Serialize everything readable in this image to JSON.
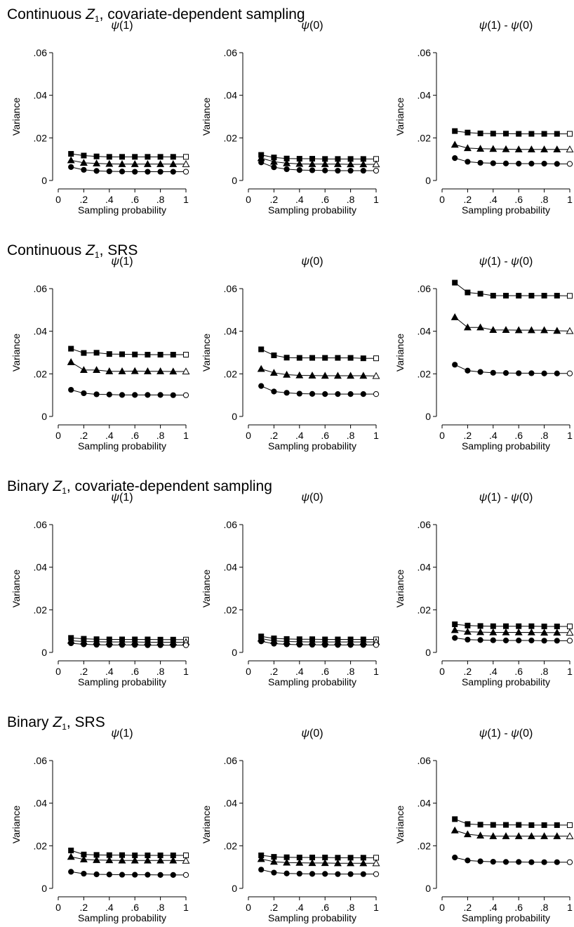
{
  "chart_data": [
    {
      "type": "line",
      "row_title": {
        "pre": "Continuous ",
        "var": "Z",
        "sub": "1",
        "post": ", covariate-dependent sampling"
      },
      "title": "ψ(1)",
      "xlabel": "Sampling probability",
      "ylabel": "Variance",
      "xlim": [
        0,
        1
      ],
      "ylim": [
        0,
        0.06
      ],
      "xticks": [
        "0",
        ".2",
        ".4",
        ".6",
        ".8",
        "1"
      ],
      "yticks": [
        "0",
        ".02",
        ".04",
        ".06"
      ],
      "x": [
        0.1,
        0.2,
        0.3,
        0.4,
        0.5,
        0.6,
        0.7,
        0.8,
        0.9,
        1.0
      ],
      "series": [
        {
          "marker": "square",
          "values": [
            0.0125,
            0.0117,
            0.0113,
            0.0111,
            0.0111,
            0.0111,
            0.0111,
            0.0111,
            0.0111,
            0.0111
          ]
        },
        {
          "marker": "triangle",
          "values": [
            0.0095,
            0.0083,
            0.008,
            0.0078,
            0.0077,
            0.0077,
            0.0077,
            0.0077,
            0.0077,
            0.0077
          ]
        },
        {
          "marker": "circle",
          "values": [
            0.0063,
            0.005,
            0.0045,
            0.0043,
            0.0042,
            0.0041,
            0.0041,
            0.0041,
            0.0041,
            0.0041
          ]
        }
      ]
    },
    {
      "type": "line",
      "title": "ψ(0)",
      "xlabel": "Sampling probability",
      "ylabel": "Variance",
      "xlim": [
        0,
        1
      ],
      "ylim": [
        0,
        0.06
      ],
      "xticks": [
        "0",
        ".2",
        ".4",
        ".6",
        ".8",
        "1"
      ],
      "yticks": [
        "0",
        ".02",
        ".04",
        ".06"
      ],
      "x": [
        0.1,
        0.2,
        0.3,
        0.4,
        0.5,
        0.6,
        0.7,
        0.8,
        0.9,
        1.0
      ],
      "series": [
        {
          "marker": "square",
          "values": [
            0.012,
            0.0108,
            0.0103,
            0.0102,
            0.0102,
            0.0101,
            0.0101,
            0.0101,
            0.0101,
            0.0101
          ]
        },
        {
          "marker": "triangle",
          "values": [
            0.0105,
            0.0088,
            0.0081,
            0.0078,
            0.0077,
            0.0077,
            0.0077,
            0.0076,
            0.0076,
            0.0076
          ]
        },
        {
          "marker": "circle",
          "values": [
            0.0085,
            0.0062,
            0.0053,
            0.0049,
            0.0048,
            0.0047,
            0.0046,
            0.0046,
            0.0046,
            0.0046
          ]
        }
      ]
    },
    {
      "type": "line",
      "title": "ψ(1) - ψ(0)",
      "xlabel": "Sampling probability",
      "ylabel": "Variance",
      "xlim": [
        0,
        1
      ],
      "ylim": [
        0,
        0.06
      ],
      "xticks": [
        "0",
        ".2",
        ".4",
        ".6",
        ".8",
        "1"
      ],
      "yticks": [
        "0",
        ".02",
        ".04",
        ".06"
      ],
      "x": [
        0.1,
        0.2,
        0.3,
        0.4,
        0.5,
        0.6,
        0.7,
        0.8,
        0.9,
        1.0
      ],
      "series": [
        {
          "marker": "square",
          "values": [
            0.0232,
            0.0225,
            0.0221,
            0.022,
            0.022,
            0.0219,
            0.0219,
            0.0219,
            0.0219,
            0.0219
          ]
        },
        {
          "marker": "triangle",
          "values": [
            0.0168,
            0.0152,
            0.0149,
            0.0148,
            0.0147,
            0.0146,
            0.0146,
            0.0146,
            0.0146,
            0.0146
          ]
        },
        {
          "marker": "circle",
          "values": [
            0.0105,
            0.0088,
            0.0083,
            0.0081,
            0.008,
            0.0079,
            0.0079,
            0.0079,
            0.0078,
            0.0078
          ]
        }
      ]
    },
    {
      "type": "line",
      "row_title": {
        "pre": "Continuous ",
        "var": "Z",
        "sub": "1",
        "post": ", SRS"
      },
      "title": "ψ(1)",
      "xlabel": "Sampling probability",
      "ylabel": "Variance",
      "xlim": [
        0,
        1
      ],
      "ylim": [
        0,
        0.06
      ],
      "xticks": [
        "0",
        ".2",
        ".4",
        ".6",
        ".8",
        "1"
      ],
      "yticks": [
        "0",
        ".02",
        ".04",
        ".06"
      ],
      "x": [
        0.1,
        0.2,
        0.3,
        0.4,
        0.5,
        0.6,
        0.7,
        0.8,
        0.9,
        1.0
      ],
      "series": [
        {
          "marker": "square",
          "values": [
            0.0318,
            0.0298,
            0.0299,
            0.0293,
            0.0292,
            0.0291,
            0.029,
            0.029,
            0.029,
            0.029
          ]
        },
        {
          "marker": "triangle",
          "values": [
            0.0255,
            0.0218,
            0.0218,
            0.0212,
            0.0212,
            0.0213,
            0.0212,
            0.0212,
            0.0211,
            0.0211
          ]
        },
        {
          "marker": "circle",
          "values": [
            0.0125,
            0.0109,
            0.0104,
            0.0103,
            0.0101,
            0.0101,
            0.0101,
            0.0101,
            0.01,
            0.01
          ]
        }
      ]
    },
    {
      "type": "line",
      "title": "ψ(0)",
      "xlabel": "Sampling probability",
      "ylabel": "Variance",
      "xlim": [
        0,
        1
      ],
      "ylim": [
        0,
        0.06
      ],
      "xticks": [
        "0",
        ".2",
        ".4",
        ".6",
        ".8",
        "1"
      ],
      "yticks": [
        "0",
        ".02",
        ".04",
        ".06"
      ],
      "x": [
        0.1,
        0.2,
        0.3,
        0.4,
        0.5,
        0.6,
        0.7,
        0.8,
        0.9,
        1.0
      ],
      "series": [
        {
          "marker": "square",
          "values": [
            0.0315,
            0.0287,
            0.0276,
            0.0275,
            0.0275,
            0.0275,
            0.0275,
            0.0275,
            0.0273,
            0.0273
          ]
        },
        {
          "marker": "triangle",
          "values": [
            0.0223,
            0.0205,
            0.0196,
            0.0193,
            0.0192,
            0.0191,
            0.0191,
            0.0191,
            0.0191,
            0.019
          ]
        },
        {
          "marker": "circle",
          "values": [
            0.0143,
            0.0117,
            0.0111,
            0.0107,
            0.0106,
            0.0105,
            0.0105,
            0.0105,
            0.0105,
            0.0105
          ]
        }
      ]
    },
    {
      "type": "line",
      "title": "ψ(1) - ψ(0)",
      "xlabel": "Sampling probability",
      "ylabel": "Variance",
      "xlim": [
        0,
        1
      ],
      "ylim": [
        0,
        0.06
      ],
      "xticks": [
        "0",
        ".2",
        ".4",
        ".6",
        ".8",
        "1"
      ],
      "yticks": [
        "0",
        ".02",
        ".04",
        ".06"
      ],
      "x": [
        0.1,
        0.2,
        0.3,
        0.4,
        0.5,
        0.6,
        0.7,
        0.8,
        0.9,
        1.0
      ],
      "series": [
        {
          "marker": "square",
          "values": [
            0.0628,
            0.0582,
            0.0576,
            0.0567,
            0.0567,
            0.0567,
            0.0567,
            0.0567,
            0.0567,
            0.0566
          ]
        },
        {
          "marker": "triangle",
          "values": [
            0.0466,
            0.0418,
            0.0418,
            0.0406,
            0.0406,
            0.0405,
            0.0405,
            0.0405,
            0.0402,
            0.0401
          ]
        },
        {
          "marker": "circle",
          "values": [
            0.0243,
            0.0215,
            0.0209,
            0.0205,
            0.0204,
            0.0203,
            0.0203,
            0.0202,
            0.0202,
            0.0202
          ]
        }
      ]
    },
    {
      "type": "line",
      "row_title": {
        "pre": "Binary ",
        "var": "Z",
        "sub": "1",
        "post": ", covariate-dependent sampling"
      },
      "title": "ψ(1)",
      "xlabel": "Sampling probability",
      "ylabel": "Variance",
      "xlim": [
        0,
        1
      ],
      "ylim": [
        0,
        0.06
      ],
      "xticks": [
        "0",
        ".2",
        ".4",
        ".6",
        ".8",
        "1"
      ],
      "yticks": [
        "0",
        ".02",
        ".04",
        ".06"
      ],
      "x": [
        0.1,
        0.2,
        0.3,
        0.4,
        0.5,
        0.6,
        0.7,
        0.8,
        0.9,
        1.0
      ],
      "series": [
        {
          "marker": "square",
          "values": [
            0.0068,
            0.0064,
            0.0062,
            0.0061,
            0.0061,
            0.0061,
            0.0061,
            0.006,
            0.006,
            0.006
          ]
        },
        {
          "marker": "triangle",
          "values": [
            0.0055,
            0.0051,
            0.005,
            0.0049,
            0.0049,
            0.0049,
            0.0048,
            0.0048,
            0.0048,
            0.0048
          ]
        },
        {
          "marker": "circle",
          "values": [
            0.0043,
            0.0038,
            0.0036,
            0.0035,
            0.0035,
            0.0035,
            0.0034,
            0.0034,
            0.0034,
            0.0034
          ]
        }
      ]
    },
    {
      "type": "line",
      "title": "ψ(0)",
      "xlabel": "Sampling probability",
      "ylabel": "Variance",
      "xlim": [
        0,
        1
      ],
      "ylim": [
        0,
        0.06
      ],
      "xticks": [
        "0",
        ".2",
        ".4",
        ".6",
        ".8",
        "1"
      ],
      "yticks": [
        "0",
        ".02",
        ".04",
        ".06"
      ],
      "x": [
        0.1,
        0.2,
        0.3,
        0.4,
        0.5,
        0.6,
        0.7,
        0.8,
        0.9,
        1.0
      ],
      "series": [
        {
          "marker": "square",
          "values": [
            0.0075,
            0.0066,
            0.0063,
            0.0062,
            0.0062,
            0.0061,
            0.0061,
            0.0061,
            0.0061,
            0.0061
          ]
        },
        {
          "marker": "triangle",
          "values": [
            0.0065,
            0.0054,
            0.0051,
            0.005,
            0.0049,
            0.0049,
            0.0049,
            0.0049,
            0.0049,
            0.0049
          ]
        },
        {
          "marker": "circle",
          "values": [
            0.0052,
            0.0041,
            0.0038,
            0.0036,
            0.0036,
            0.0035,
            0.0035,
            0.0035,
            0.0035,
            0.0035
          ]
        }
      ]
    },
    {
      "type": "line",
      "title": "ψ(1) - ψ(0)",
      "xlabel": "Sampling probability",
      "ylabel": "Variance",
      "xlim": [
        0,
        1
      ],
      "ylim": [
        0,
        0.06
      ],
      "xticks": [
        "0",
        ".2",
        ".4",
        ".6",
        ".8",
        "1"
      ],
      "yticks": [
        "0",
        ".02",
        ".04",
        ".06"
      ],
      "x": [
        0.1,
        0.2,
        0.3,
        0.4,
        0.5,
        0.6,
        0.7,
        0.8,
        0.9,
        1.0
      ],
      "series": [
        {
          "marker": "square",
          "values": [
            0.0132,
            0.0126,
            0.0124,
            0.0123,
            0.0123,
            0.0123,
            0.0123,
            0.0122,
            0.0122,
            0.0122
          ]
        },
        {
          "marker": "triangle",
          "values": [
            0.0105,
            0.0097,
            0.0095,
            0.0094,
            0.0094,
            0.0094,
            0.0094,
            0.0093,
            0.0093,
            0.0093
          ]
        },
        {
          "marker": "circle",
          "values": [
            0.0068,
            0.006,
            0.0058,
            0.0057,
            0.0056,
            0.0056,
            0.0056,
            0.0055,
            0.0055,
            0.0055
          ]
        }
      ]
    },
    {
      "type": "line",
      "row_title": {
        "pre": "Binary ",
        "var": "Z",
        "sub": "1",
        "post": ", SRS"
      },
      "title": "ψ(1)",
      "xlabel": "Sampling probability",
      "ylabel": "Variance",
      "xlim": [
        0,
        1
      ],
      "ylim": [
        0,
        0.06
      ],
      "xticks": [
        "0",
        ".2",
        ".4",
        ".6",
        ".8",
        "1"
      ],
      "yticks": [
        "0",
        ".02",
        ".04",
        ".06"
      ],
      "x": [
        0.1,
        0.2,
        0.3,
        0.4,
        0.5,
        0.6,
        0.7,
        0.8,
        0.9,
        1.0
      ],
      "series": [
        {
          "marker": "square",
          "values": [
            0.0178,
            0.0159,
            0.0157,
            0.0156,
            0.0156,
            0.0155,
            0.0155,
            0.0155,
            0.0155,
            0.0155
          ]
        },
        {
          "marker": "triangle",
          "values": [
            0.0148,
            0.0136,
            0.0133,
            0.0132,
            0.0131,
            0.0131,
            0.0131,
            0.0131,
            0.0131,
            0.013
          ]
        },
        {
          "marker": "circle",
          "values": [
            0.0078,
            0.0069,
            0.0066,
            0.0065,
            0.0064,
            0.0064,
            0.0064,
            0.0063,
            0.0063,
            0.0063
          ]
        }
      ]
    },
    {
      "type": "line",
      "title": "ψ(0)",
      "xlabel": "Sampling probability",
      "ylabel": "Variance",
      "xlim": [
        0,
        1
      ],
      "ylim": [
        0,
        0.06
      ],
      "xticks": [
        "0",
        ".2",
        ".4",
        ".6",
        ".8",
        "1"
      ],
      "yticks": [
        "0",
        ".02",
        ".04",
        ".06"
      ],
      "x": [
        0.1,
        0.2,
        0.3,
        0.4,
        0.5,
        0.6,
        0.7,
        0.8,
        0.9,
        1.0
      ],
      "series": [
        {
          "marker": "square",
          "values": [
            0.0155,
            0.0148,
            0.0146,
            0.0145,
            0.0145,
            0.0145,
            0.0144,
            0.0144,
            0.0144,
            0.0144
          ]
        },
        {
          "marker": "triangle",
          "values": [
            0.0138,
            0.0125,
            0.0121,
            0.012,
            0.0119,
            0.0119,
            0.0118,
            0.0118,
            0.0118,
            0.0118
          ]
        },
        {
          "marker": "circle",
          "values": [
            0.0088,
            0.0074,
            0.007,
            0.0069,
            0.0068,
            0.0068,
            0.0067,
            0.0067,
            0.0067,
            0.0067
          ]
        }
      ]
    },
    {
      "type": "line",
      "title": "ψ(1) - ψ(0)",
      "xlabel": "Sampling probability",
      "ylabel": "Variance",
      "xlim": [
        0,
        1
      ],
      "ylim": [
        0,
        0.06
      ],
      "xticks": [
        "0",
        ".2",
        ".4",
        ".6",
        ".8",
        "1"
      ],
      "yticks": [
        "0",
        ".02",
        ".04",
        ".06"
      ],
      "x": [
        0.1,
        0.2,
        0.3,
        0.4,
        0.5,
        0.6,
        0.7,
        0.8,
        0.9,
        1.0
      ],
      "series": [
        {
          "marker": "square",
          "values": [
            0.0325,
            0.0302,
            0.0299,
            0.0298,
            0.0298,
            0.0298,
            0.0297,
            0.0297,
            0.0297,
            0.0297
          ]
        },
        {
          "marker": "triangle",
          "values": [
            0.0272,
            0.0254,
            0.0248,
            0.0245,
            0.0245,
            0.0245,
            0.0245,
            0.0245,
            0.0245,
            0.0245
          ]
        },
        {
          "marker": "circle",
          "values": [
            0.0145,
            0.0131,
            0.0127,
            0.0125,
            0.0124,
            0.0124,
            0.0123,
            0.0123,
            0.0123,
            0.0123
          ]
        }
      ]
    }
  ]
}
